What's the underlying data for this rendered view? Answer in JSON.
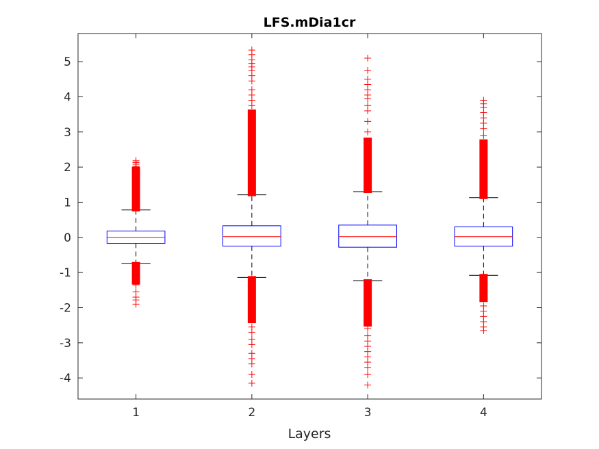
{
  "chart_data": {
    "type": "box",
    "title": "LFS.mDia1cr",
    "xlabel": "Layers",
    "ylabel": "",
    "categories": [
      "1",
      "2",
      "3",
      "4"
    ],
    "ylim": [
      -4.6,
      5.8
    ],
    "yticks": [
      -4,
      -3,
      -2,
      -1,
      0,
      1,
      2,
      3,
      4,
      5
    ],
    "ytick_labels": [
      "-4",
      "-3",
      "-2",
      "-1",
      "0",
      "1",
      "2",
      "3",
      "4",
      "5"
    ],
    "grid": false,
    "boxes": [
      {
        "name": "1",
        "q1": -0.17,
        "median": 0.0,
        "q3": 0.18,
        "whisker_low": -0.74,
        "whisker_high": 0.78,
        "outliers_high_dense": [
          0.78,
          1.97
        ],
        "outliers_high_sparse": [
          2.02,
          2.08,
          2.13,
          2.18
        ],
        "outliers_low_dense": [
          -0.74,
          -1.3
        ],
        "outliers_low_sparse": [
          -1.35,
          -1.55,
          -1.7,
          -1.78,
          -1.9
        ]
      },
      {
        "name": "2",
        "q1": -0.25,
        "median": 0.02,
        "q3": 0.33,
        "whisker_low": -1.14,
        "whisker_high": 1.21,
        "outliers_high_dense": [
          1.21,
          3.6
        ],
        "outliers_high_sparse": [
          3.75,
          3.9,
          4.05,
          4.2,
          4.45,
          4.6,
          4.75,
          4.85,
          4.95,
          5.05,
          5.2,
          5.33
        ],
        "outliers_low_dense": [
          -1.14,
          -2.4
        ],
        "outliers_low_sparse": [
          -2.55,
          -2.7,
          -2.9,
          -3.05,
          -3.3,
          -3.45,
          -3.6,
          -3.9,
          -4.15
        ]
      },
      {
        "name": "3",
        "q1": -0.28,
        "median": 0.02,
        "q3": 0.35,
        "whisker_low": -1.23,
        "whisker_high": 1.3,
        "outliers_high_dense": [
          1.3,
          2.8
        ],
        "outliers_high_sparse": [
          3.0,
          3.3,
          3.6,
          3.75,
          3.95,
          4.05,
          4.2,
          4.35,
          4.5,
          4.75,
          5.1
        ],
        "outliers_low_dense": [
          -1.23,
          -2.5
        ],
        "outliers_low_sparse": [
          -2.6,
          -2.8,
          -2.95,
          -3.1,
          -3.25,
          -3.4,
          -3.55,
          -3.7,
          -3.9,
          -4.2
        ]
      },
      {
        "name": "4",
        "q1": -0.25,
        "median": 0.02,
        "q3": 0.3,
        "whisker_low": -1.08,
        "whisker_high": 1.13,
        "outliers_high_dense": [
          1.13,
          2.75
        ],
        "outliers_high_sparse": [
          2.9,
          3.1,
          3.25,
          3.4,
          3.55,
          3.7,
          3.8,
          3.9
        ],
        "outliers_low_dense": [
          -1.08,
          -1.8
        ],
        "outliers_low_sparse": [
          -1.95,
          -2.1,
          -2.25,
          -2.4,
          -2.55,
          -2.65
        ]
      }
    ],
    "colors": {
      "box": "#0000ff",
      "median": "#ff0000",
      "whisker": "#000000",
      "outlier": "#ff0000",
      "axis": "#262626"
    }
  }
}
